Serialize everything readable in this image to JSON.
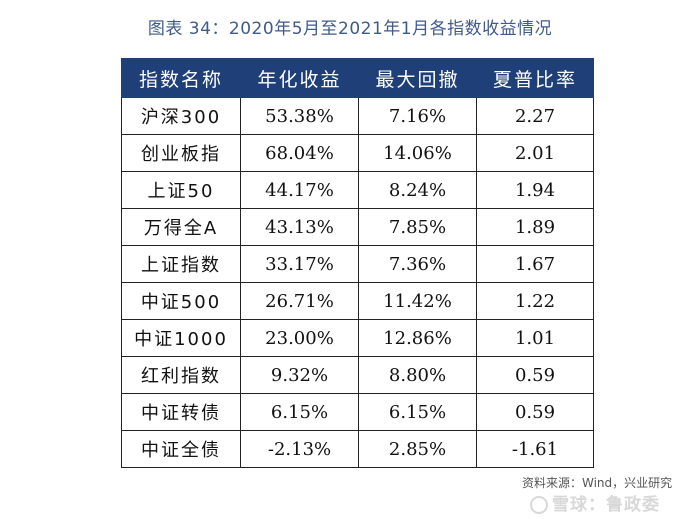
{
  "title": "图表 34：2020年5月至2021年1月各指数收益情况",
  "table": {
    "headers": [
      "指数名称",
      "年化收益",
      "最大回撤",
      "夏普比率"
    ],
    "rows": [
      [
        "沪深300",
        "53.38%",
        "7.16%",
        "2.27"
      ],
      [
        "创业板指",
        "68.04%",
        "14.06%",
        "2.01"
      ],
      [
        "上证50",
        "44.17%",
        "8.24%",
        "1.94"
      ],
      [
        "万得全A",
        "43.13%",
        "7.85%",
        "1.89"
      ],
      [
        "上证指数",
        "33.17%",
        "7.36%",
        "1.67"
      ],
      [
        "中证500",
        "26.71%",
        "11.42%",
        "1.22"
      ],
      [
        "中证1000",
        "23.00%",
        "12.86%",
        "1.01"
      ],
      [
        "红利指数",
        "9.32%",
        "8.80%",
        "0.59"
      ],
      [
        "中证转债",
        "6.15%",
        "6.15%",
        "0.59"
      ],
      [
        "中证全债",
        "-2.13%",
        "2.85%",
        "-1.61"
      ]
    ]
  },
  "source": "资料来源：Wind，兴业研究",
  "watermark": "雪球：鲁政委",
  "colors": {
    "header_bg": "#1f3f78",
    "title": "#3f5a8c"
  }
}
